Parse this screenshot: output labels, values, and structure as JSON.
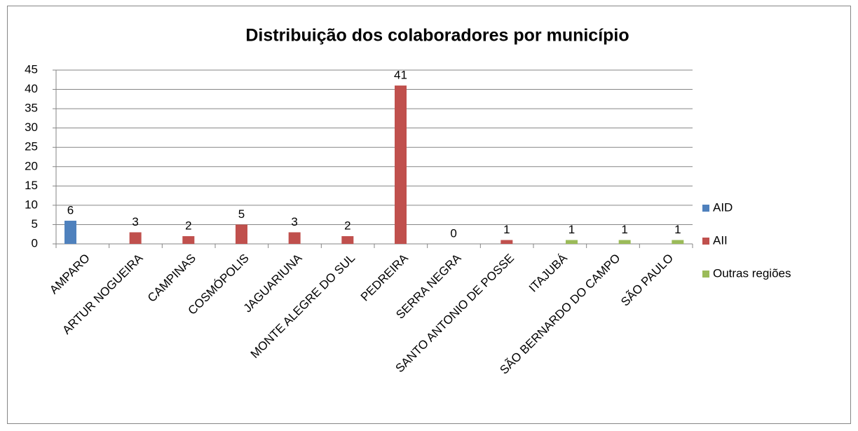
{
  "chart_data": {
    "type": "bar",
    "title": "Distribuição dos colaboradores por município",
    "categories": [
      "AMPARO",
      "ARTUR NOGUEIRA",
      "CAMPINAS",
      "COSMÓPOLIS",
      "JAGUARIUNA",
      "MONTE ALEGRE DO SUL",
      "PEDREIRA",
      "SERRA NEGRA",
      "SANTO ANTONIO DE POSSE",
      "ITAJUBÁ",
      "SÃO BERNARDO DO CAMPO",
      "SÃO PAULO"
    ],
    "series": [
      {
        "name": "AID",
        "color": "#4f81bd",
        "values": [
          6,
          null,
          null,
          null,
          null,
          null,
          null,
          null,
          null,
          null,
          null,
          null
        ]
      },
      {
        "name": "AII",
        "color": "#c0504d",
        "values": [
          null,
          3,
          2,
          5,
          3,
          2,
          41,
          0,
          1,
          null,
          null,
          null
        ]
      },
      {
        "name": "Outras regiões",
        "color": "#9bbb59",
        "values": [
          null,
          null,
          null,
          null,
          null,
          null,
          null,
          null,
          null,
          1,
          1,
          1
        ]
      }
    ],
    "ylim": [
      0,
      45
    ],
    "yticks": [
      0,
      5,
      10,
      15,
      20,
      25,
      30,
      35,
      40,
      45
    ],
    "grid": true,
    "legend": "right"
  }
}
